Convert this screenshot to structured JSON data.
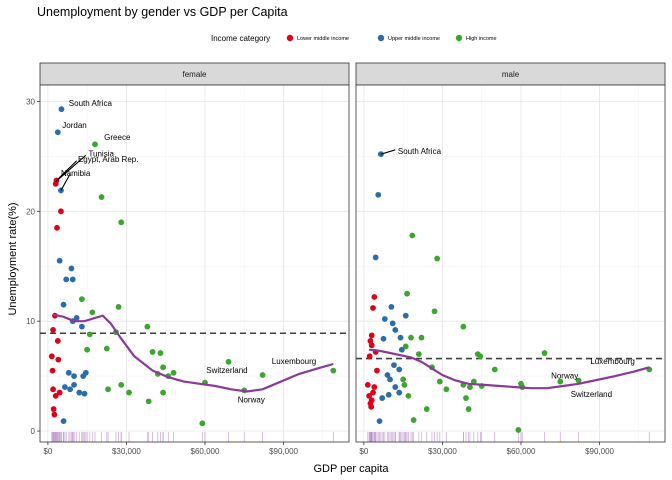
{
  "title": "Unemployment by gender vs GDP per Capita",
  "legend": {
    "title": "Income category",
    "items": [
      {
        "label": "Lower middle income",
        "color": "#e0001b"
      },
      {
        "label": "Upper middle income",
        "color": "#2b6cad"
      },
      {
        "label": "High income",
        "color": "#3ba52f"
      }
    ]
  },
  "chart_data": {
    "type": "scatter",
    "title": "Unemployment by gender vs GDP per Capita",
    "xlabel": "GDP per capita",
    "ylabel": "Unemployment rate(%)",
    "xlim": [
      -3000,
      115000
    ],
    "ylim": [
      -1.0,
      31.5
    ],
    "xticks": [
      0,
      30000,
      60000,
      90000
    ],
    "xtick_labels": [
      "$0",
      "$30,000",
      "$60,000",
      "$90,000"
    ],
    "yticks": [
      0,
      10,
      20,
      30
    ],
    "ytick_labels": [
      "0",
      "10",
      "20",
      "30"
    ],
    "grid": true,
    "legend_position": "top",
    "smooth_color": "#8a3a9a",
    "hline_color": "#404040",
    "rug_color": "#b07cc6",
    "facets": [
      {
        "name": "female",
        "mean_line": 8.9,
        "points": [
          {
            "x": 1500,
            "y": 6.8,
            "cat": 0
          },
          {
            "x": 1800,
            "y": 5.5,
            "cat": 0
          },
          {
            "x": 2000,
            "y": 3.8,
            "cat": 0
          },
          {
            "x": 2200,
            "y": 2.0,
            "cat": 0
          },
          {
            "x": 2500,
            "y": 1.5,
            "cat": 0
          },
          {
            "x": 2000,
            "y": 9.2,
            "cat": 0
          },
          {
            "x": 2700,
            "y": 10.5,
            "cat": 0
          },
          {
            "x": 3000,
            "y": 22.5,
            "cat": 0
          },
          {
            "x": 3300,
            "y": 22.8,
            "cat": 0
          },
          {
            "x": 3500,
            "y": 18.5,
            "cat": 0
          },
          {
            "x": 4000,
            "y": 6.5,
            "cat": 0
          },
          {
            "x": 4500,
            "y": 3.5,
            "cat": 0
          },
          {
            "x": 3000,
            "y": 3.2,
            "cat": 0
          },
          {
            "x": 5000,
            "y": 20.0,
            "cat": 0
          },
          {
            "x": 3800,
            "y": 8.2,
            "cat": 0
          },
          {
            "x": 5200,
            "y": 29.3,
            "cat": 1
          },
          {
            "x": 3800,
            "y": 27.2,
            "cat": 1
          },
          {
            "x": 5000,
            "y": 21.9,
            "cat": 1
          },
          {
            "x": 4500,
            "y": 15.5,
            "cat": 1
          },
          {
            "x": 7000,
            "y": 13.8,
            "cat": 1
          },
          {
            "x": 9500,
            "y": 13.8,
            "cat": 1
          },
          {
            "x": 9000,
            "y": 14.8,
            "cat": 1
          },
          {
            "x": 6000,
            "y": 11.5,
            "cat": 1
          },
          {
            "x": 9500,
            "y": 10.0,
            "cat": 1
          },
          {
            "x": 11000,
            "y": 10.3,
            "cat": 1
          },
          {
            "x": 13000,
            "y": 9.5,
            "cat": 1
          },
          {
            "x": 8000,
            "y": 5.3,
            "cat": 1
          },
          {
            "x": 10000,
            "y": 5.0,
            "cat": 1
          },
          {
            "x": 13500,
            "y": 5.0,
            "cat": 1
          },
          {
            "x": 6500,
            "y": 4.0,
            "cat": 1
          },
          {
            "x": 8500,
            "y": 3.8,
            "cat": 1
          },
          {
            "x": 10000,
            "y": 4.2,
            "cat": 1
          },
          {
            "x": 12000,
            "y": 3.5,
            "cat": 1
          },
          {
            "x": 6000,
            "y": 0.9,
            "cat": 1
          },
          {
            "x": 14000,
            "y": 3.4,
            "cat": 1
          },
          {
            "x": 14500,
            "y": 5.3,
            "cat": 1
          },
          {
            "x": 18000,
            "y": 26.1,
            "cat": 2
          },
          {
            "x": 20500,
            "y": 21.3,
            "cat": 2
          },
          {
            "x": 28000,
            "y": 19.0,
            "cat": 2
          },
          {
            "x": 13000,
            "y": 12.0,
            "cat": 2
          },
          {
            "x": 17000,
            "y": 10.8,
            "cat": 2
          },
          {
            "x": 27000,
            "y": 11.3,
            "cat": 2
          },
          {
            "x": 16000,
            "y": 8.8,
            "cat": 2
          },
          {
            "x": 15000,
            "y": 7.4,
            "cat": 2
          },
          {
            "x": 22500,
            "y": 7.5,
            "cat": 2
          },
          {
            "x": 26000,
            "y": 9.0,
            "cat": 2
          },
          {
            "x": 38000,
            "y": 9.5,
            "cat": 2
          },
          {
            "x": 40000,
            "y": 7.2,
            "cat": 2
          },
          {
            "x": 43000,
            "y": 7.1,
            "cat": 2
          },
          {
            "x": 44000,
            "y": 5.8,
            "cat": 2
          },
          {
            "x": 48000,
            "y": 5.3,
            "cat": 2
          },
          {
            "x": 42000,
            "y": 5.2,
            "cat": 2
          },
          {
            "x": 46000,
            "y": 5.0,
            "cat": 2
          },
          {
            "x": 69000,
            "y": 6.3,
            "cat": 2
          },
          {
            "x": 82000,
            "y": 5.1,
            "cat": 2
          },
          {
            "x": 109000,
            "y": 5.5,
            "cat": 2
          },
          {
            "x": 60000,
            "y": 4.4,
            "cat": 2
          },
          {
            "x": 75000,
            "y": 3.7,
            "cat": 2
          },
          {
            "x": 23000,
            "y": 3.8,
            "cat": 2
          },
          {
            "x": 28000,
            "y": 4.2,
            "cat": 2
          },
          {
            "x": 31000,
            "y": 3.5,
            "cat": 2
          },
          {
            "x": 38500,
            "y": 2.7,
            "cat": 2
          },
          {
            "x": 44000,
            "y": 3.5,
            "cat": 2
          },
          {
            "x": 59000,
            "y": 0.7,
            "cat": 2
          }
        ],
        "labels": [
          {
            "text": "South Africa",
            "x": 8000,
            "y": 29.6
          },
          {
            "text": "Jordan",
            "x": 5500,
            "y": 27.6
          },
          {
            "text": "Greece",
            "x": 21500,
            "y": 26.5
          },
          {
            "text": "Tunisia",
            "x": 15500,
            "y": 25.0
          },
          {
            "text": "Egypt, Arab Rep.",
            "x": 11500,
            "y": 24.5
          },
          {
            "text": "Namibia",
            "x": 5000,
            "y": 23.2
          },
          {
            "text": "Switzerland",
            "x": 60500,
            "y": 5.3
          },
          {
            "text": "Luxembourg",
            "x": 85500,
            "y": 6.1
          },
          {
            "text": "Norway",
            "x": 72500,
            "y": 2.6
          }
        ],
        "segments": [
          {
            "x1": 3000,
            "y1": 22.7,
            "x2": 14500,
            "y2": 25.1
          },
          {
            "x1": 3300,
            "y1": 22.8,
            "x2": 11000,
            "y2": 24.6
          },
          {
            "x1": 5000,
            "y1": 21.9,
            "x2": 8500,
            "y2": 23.4
          }
        ],
        "smooth": [
          [
            2000,
            10.6
          ],
          [
            6000,
            10.4
          ],
          [
            10000,
            10.0
          ],
          [
            14000,
            10.0
          ],
          [
            18000,
            10.3
          ],
          [
            21000,
            10.5
          ],
          [
            24000,
            9.8
          ],
          [
            28000,
            8.4
          ],
          [
            33000,
            6.8
          ],
          [
            40000,
            5.5
          ],
          [
            46000,
            4.9
          ],
          [
            52000,
            4.5
          ],
          [
            58000,
            4.3
          ],
          [
            64000,
            4.1
          ],
          [
            70000,
            3.8
          ],
          [
            76000,
            3.6
          ],
          [
            82000,
            3.8
          ],
          [
            88000,
            4.4
          ],
          [
            96000,
            5.2
          ],
          [
            103000,
            5.7
          ],
          [
            109000,
            6.1
          ]
        ]
      },
      {
        "name": "male",
        "mean_line": 6.6,
        "points": [
          {
            "x": 1500,
            "y": 4.2,
            "cat": 0
          },
          {
            "x": 2000,
            "y": 3.2,
            "cat": 0
          },
          {
            "x": 2500,
            "y": 2.5,
            "cat": 0
          },
          {
            "x": 3000,
            "y": 2.8,
            "cat": 0
          },
          {
            "x": 3500,
            "y": 3.5,
            "cat": 0
          },
          {
            "x": 4000,
            "y": 4.0,
            "cat": 0
          },
          {
            "x": 2500,
            "y": 8.2,
            "cat": 0
          },
          {
            "x": 3000,
            "y": 8.7,
            "cat": 0
          },
          {
            "x": 3500,
            "y": 11.2,
            "cat": 0
          },
          {
            "x": 4000,
            "y": 12.2,
            "cat": 0
          },
          {
            "x": 2200,
            "y": 6.8,
            "cat": 0
          },
          {
            "x": 3000,
            "y": 7.8,
            "cat": 0
          },
          {
            "x": 4500,
            "y": 7.2,
            "cat": 0
          },
          {
            "x": 5000,
            "y": 5.5,
            "cat": 0
          },
          {
            "x": 2800,
            "y": 2.2,
            "cat": 0
          },
          {
            "x": 6500,
            "y": 25.2,
            "cat": 1
          },
          {
            "x": 5500,
            "y": 21.5,
            "cat": 1
          },
          {
            "x": 4500,
            "y": 15.8,
            "cat": 1
          },
          {
            "x": 10500,
            "y": 11.3,
            "cat": 1
          },
          {
            "x": 8000,
            "y": 10.2,
            "cat": 1
          },
          {
            "x": 11000,
            "y": 9.8,
            "cat": 1
          },
          {
            "x": 7500,
            "y": 8.4,
            "cat": 1
          },
          {
            "x": 14500,
            "y": 7.4,
            "cat": 1
          },
          {
            "x": 9000,
            "y": 5.1,
            "cat": 1
          },
          {
            "x": 10000,
            "y": 4.7,
            "cat": 1
          },
          {
            "x": 12000,
            "y": 4.0,
            "cat": 1
          },
          {
            "x": 13500,
            "y": 3.5,
            "cat": 1
          },
          {
            "x": 9500,
            "y": 3.3,
            "cat": 1
          },
          {
            "x": 7000,
            "y": 3.0,
            "cat": 1
          },
          {
            "x": 6000,
            "y": 0.9,
            "cat": 1
          },
          {
            "x": 11500,
            "y": 6.0,
            "cat": 1
          },
          {
            "x": 13500,
            "y": 5.6,
            "cat": 1
          },
          {
            "x": 12000,
            "y": 9.2,
            "cat": 1
          },
          {
            "x": 16000,
            "y": 10.5,
            "cat": 1
          },
          {
            "x": 14000,
            "y": 8.5,
            "cat": 1
          },
          {
            "x": 18500,
            "y": 17.8,
            "cat": 2
          },
          {
            "x": 28000,
            "y": 15.7,
            "cat": 2
          },
          {
            "x": 16500,
            "y": 12.5,
            "cat": 2
          },
          {
            "x": 27000,
            "y": 10.9,
            "cat": 2
          },
          {
            "x": 38000,
            "y": 9.5,
            "cat": 2
          },
          {
            "x": 18000,
            "y": 8.5,
            "cat": 2
          },
          {
            "x": 22000,
            "y": 8.5,
            "cat": 2
          },
          {
            "x": 16000,
            "y": 7.7,
            "cat": 2
          },
          {
            "x": 21000,
            "y": 7.0,
            "cat": 2
          },
          {
            "x": 26000,
            "y": 5.8,
            "cat": 2
          },
          {
            "x": 15000,
            "y": 4.7,
            "cat": 2
          },
          {
            "x": 15500,
            "y": 4.2,
            "cat": 2
          },
          {
            "x": 17000,
            "y": 3.2,
            "cat": 2
          },
          {
            "x": 31500,
            "y": 3.8,
            "cat": 2
          },
          {
            "x": 29000,
            "y": 4.5,
            "cat": 2
          },
          {
            "x": 38000,
            "y": 4.2,
            "cat": 2
          },
          {
            "x": 40500,
            "y": 4.0,
            "cat": 2
          },
          {
            "x": 42000,
            "y": 4.5,
            "cat": 2
          },
          {
            "x": 43500,
            "y": 7.0,
            "cat": 2
          },
          {
            "x": 44500,
            "y": 6.8,
            "cat": 2
          },
          {
            "x": 45000,
            "y": 4.1,
            "cat": 2
          },
          {
            "x": 39000,
            "y": 3.0,
            "cat": 2
          },
          {
            "x": 40000,
            "y": 2.0,
            "cat": 2
          },
          {
            "x": 50000,
            "y": 5.6,
            "cat": 2
          },
          {
            "x": 60000,
            "y": 4.3,
            "cat": 2
          },
          {
            "x": 60500,
            "y": 4.0,
            "cat": 2
          },
          {
            "x": 69000,
            "y": 7.1,
            "cat": 2
          },
          {
            "x": 75000,
            "y": 4.5,
            "cat": 2
          },
          {
            "x": 82000,
            "y": 4.6,
            "cat": 2
          },
          {
            "x": 109000,
            "y": 5.6,
            "cat": 2
          },
          {
            "x": 24000,
            "y": 2.0,
            "cat": 2
          },
          {
            "x": 19000,
            "y": 1.0,
            "cat": 2
          },
          {
            "x": 59000,
            "y": 0.1,
            "cat": 2
          }
        ],
        "labels": [
          {
            "text": "South Africa",
            "x": 13000,
            "y": 25.2
          },
          {
            "text": "Norway",
            "x": 71500,
            "y": 4.8
          },
          {
            "text": "Luxembourg",
            "x": 86500,
            "y": 6.1
          },
          {
            "text": "Switzerland",
            "x": 79000,
            "y": 3.1
          }
        ],
        "segments": [
          {
            "x1": 6500,
            "y1": 25.2,
            "x2": 12000,
            "y2": 25.6
          }
        ],
        "smooth": [
          [
            2000,
            7.4
          ],
          [
            6000,
            7.3
          ],
          [
            10000,
            7.1
          ],
          [
            14000,
            6.9
          ],
          [
            18000,
            6.7
          ],
          [
            22000,
            6.3
          ],
          [
            26000,
            5.7
          ],
          [
            30000,
            5.1
          ],
          [
            35000,
            4.6
          ],
          [
            40000,
            4.3
          ],
          [
            46000,
            4.2
          ],
          [
            52000,
            4.1
          ],
          [
            58000,
            4.0
          ],
          [
            64000,
            3.9
          ],
          [
            70000,
            3.9
          ],
          [
            76000,
            4.1
          ],
          [
            82000,
            4.3
          ],
          [
            88000,
            4.6
          ],
          [
            96000,
            5.0
          ],
          [
            103000,
            5.4
          ],
          [
            109000,
            5.8
          ]
        ]
      }
    ]
  }
}
